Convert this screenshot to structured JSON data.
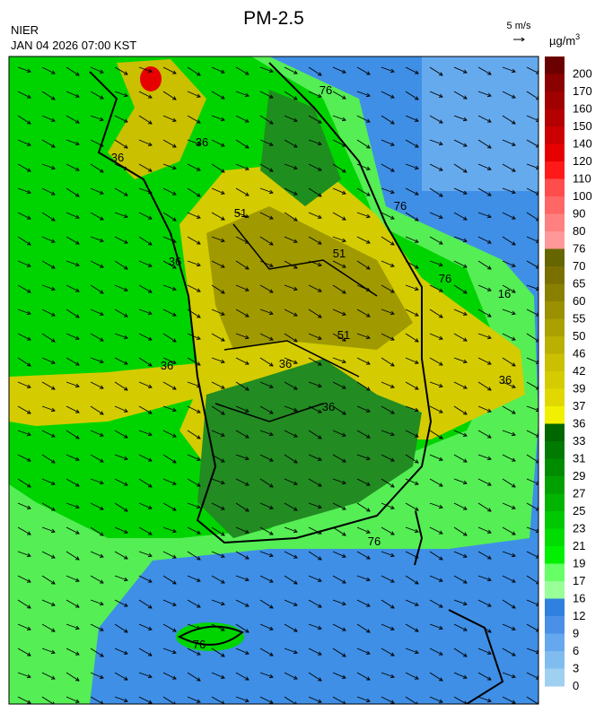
{
  "header": {
    "title": "PM-2.5",
    "agency": "NIER",
    "datetime": "JAN 04 2026 07:00 KST",
    "wind_scale": "5 m/s",
    "unit": {
      "base": "µg/m",
      "sup": "3"
    }
  },
  "map": {
    "contour_labels": [
      "76",
      "76",
      "36",
      "36",
      "36",
      "36",
      "51",
      "51",
      "51",
      "36",
      "36",
      "16",
      "76",
      "76",
      "76",
      "36"
    ]
  },
  "colorbar": {
    "bins": [
      {
        "label": 200,
        "color": "#6b0000"
      },
      {
        "label": 170,
        "color": "#8b0000"
      },
      {
        "label": 160,
        "color": "#a00000"
      },
      {
        "label": 150,
        "color": "#b40000"
      },
      {
        "label": 140,
        "color": "#cc0000"
      },
      {
        "label": 120,
        "color": "#e60000"
      },
      {
        "label": 110,
        "color": "#ff1a1a"
      },
      {
        "label": 100,
        "color": "#ff4d4d"
      },
      {
        "label": 90,
        "color": "#ff6666"
      },
      {
        "label": 80,
        "color": "#ff8080"
      },
      {
        "label": 76,
        "color": "#ff9999"
      },
      {
        "label": 70,
        "color": "#666600"
      },
      {
        "label": 65,
        "color": "#7a7000"
      },
      {
        "label": 60,
        "color": "#8a8000"
      },
      {
        "label": 55,
        "color": "#9a9000"
      },
      {
        "label": 50,
        "color": "#aaa000"
      },
      {
        "label": 46,
        "color": "#bab000"
      },
      {
        "label": 42,
        "color": "#cac000"
      },
      {
        "label": 39,
        "color": "#d4cc00"
      },
      {
        "label": 37,
        "color": "#e0d800"
      },
      {
        "label": 36,
        "color": "#f0f000"
      },
      {
        "label": 33,
        "color": "#006600"
      },
      {
        "label": 31,
        "color": "#007a00"
      },
      {
        "label": 29,
        "color": "#008c00"
      },
      {
        "label": 27,
        "color": "#00a000"
      },
      {
        "label": 25,
        "color": "#00b400"
      },
      {
        "label": 23,
        "color": "#00c800"
      },
      {
        "label": 21,
        "color": "#00dc00"
      },
      {
        "label": 19,
        "color": "#00f000"
      },
      {
        "label": 17,
        "color": "#66ff66"
      },
      {
        "label": 16,
        "color": "#99ff99"
      },
      {
        "label": 12,
        "color": "#3080e0"
      },
      {
        "label": 9,
        "color": "#4a90e8"
      },
      {
        "label": 6,
        "color": "#66a8ee"
      },
      {
        "label": 3,
        "color": "#80bcf0"
      },
      {
        "label": 0,
        "color": "#a0d0f0"
      }
    ]
  }
}
